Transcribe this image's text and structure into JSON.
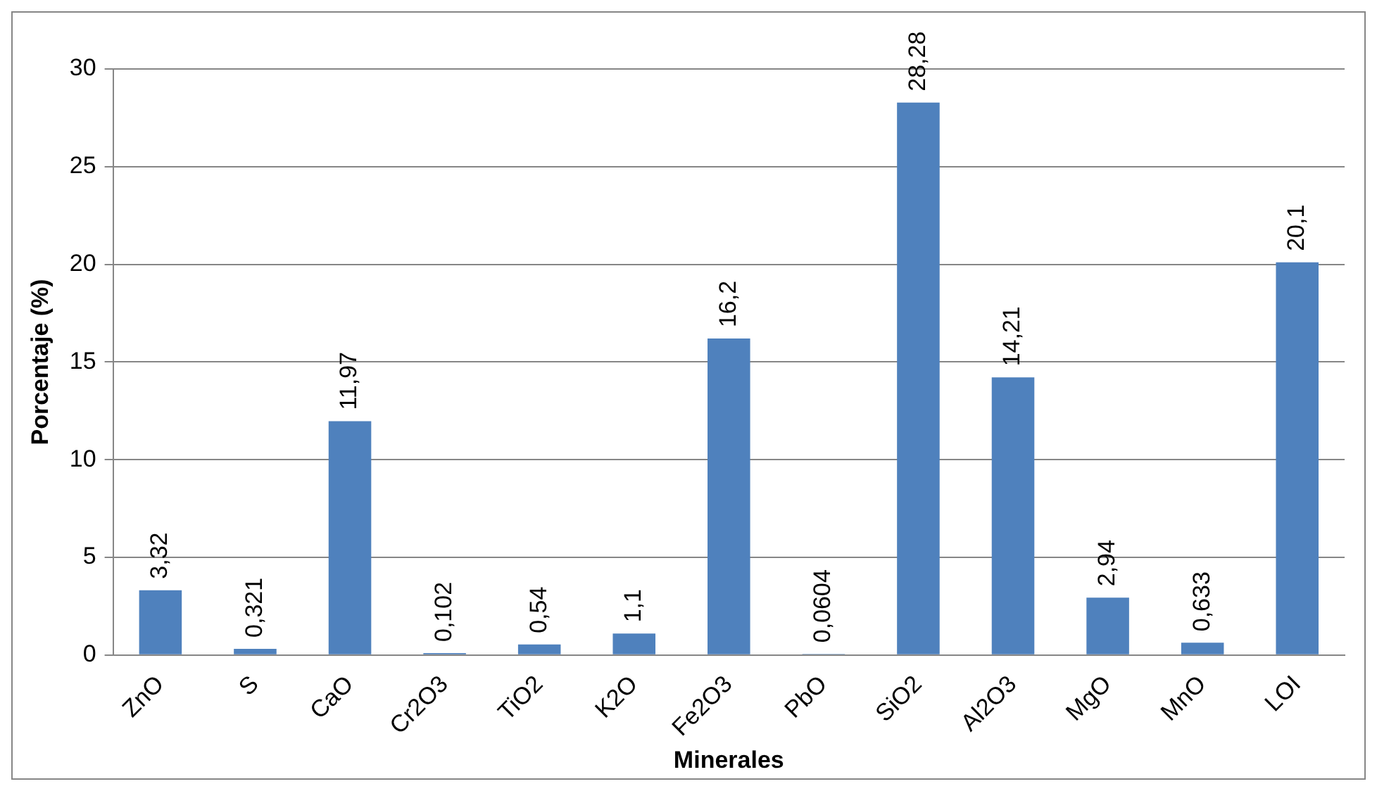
{
  "chart_data": {
    "type": "bar",
    "xlabel": "Minerales",
    "ylabel": "Porcentaje (%)",
    "categories": [
      "ZnO",
      "S",
      "CaO",
      "Cr2O3",
      "TiO2",
      "K2O",
      "Fe2O3",
      "PbO",
      "SiO2",
      "Al2O3",
      "MgO",
      "MnO",
      "LOI"
    ],
    "values": [
      3.32,
      0.321,
      11.97,
      0.102,
      0.54,
      1.1,
      16.2,
      0.0604,
      28.28,
      14.21,
      2.94,
      0.633,
      20.1
    ],
    "value_labels": [
      "3,32",
      "0,321",
      "11,97",
      "0,102",
      "0,54",
      "1,1",
      "16,2",
      "0,0604",
      "28,28",
      "14,21",
      "2,94",
      "0,633",
      "20,1"
    ],
    "color": "#4f81bd",
    "ylim": [
      0,
      30
    ],
    "yticks": [
      0,
      5,
      10,
      15,
      20,
      25,
      30
    ],
    "grid": "y",
    "legend": false
  }
}
